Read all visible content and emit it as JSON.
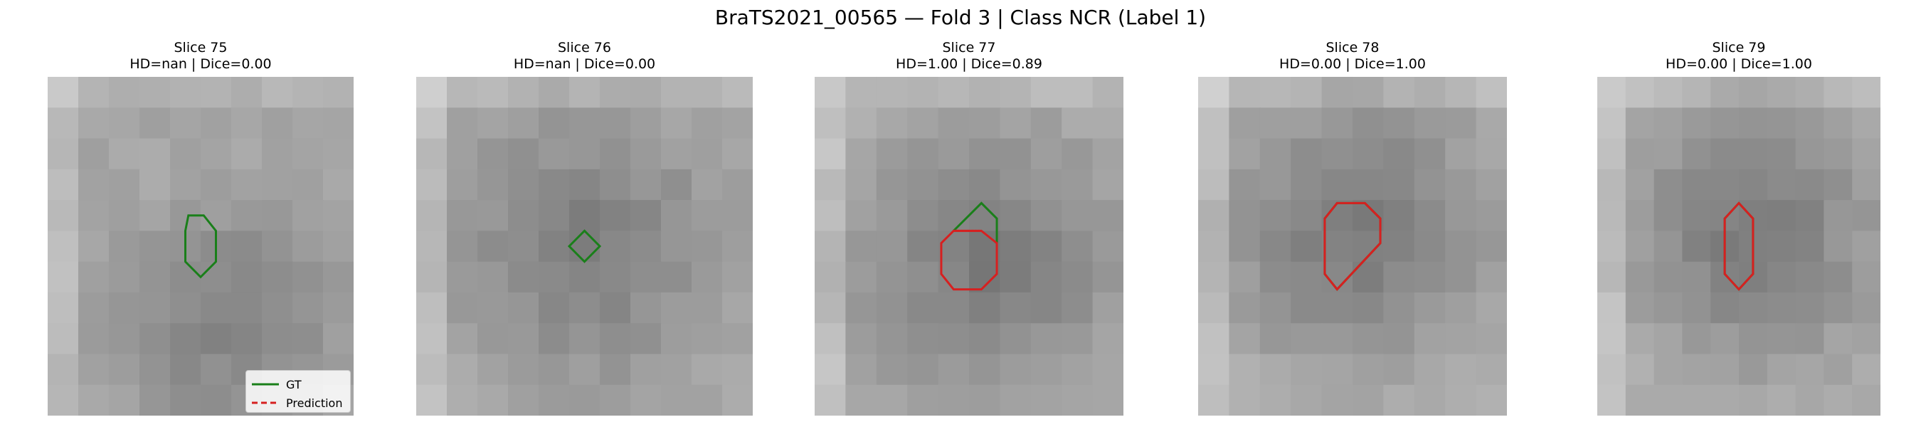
{
  "figure": {
    "title": "BraTS2021_00565 — Fold 3 | Class NCR (Label 1)"
  },
  "panels": [
    {
      "slice": "Slice 75",
      "metrics": "HD=nan | Dice=0.00"
    },
    {
      "slice": "Slice 76",
      "metrics": "HD=nan | Dice=0.00"
    },
    {
      "slice": "Slice 77",
      "metrics": "HD=1.00 | Dice=0.89"
    },
    {
      "slice": "Slice 78",
      "metrics": "HD=0.00 | Dice=1.00"
    },
    {
      "slice": "Slice 79",
      "metrics": "HD=0.00 | Dice=1.00"
    }
  ],
  "legend": {
    "gt_label": "GT",
    "pred_label": "Prediction"
  },
  "colors": {
    "gt": "#1a7f1a",
    "prediction": "#d62020"
  }
}
